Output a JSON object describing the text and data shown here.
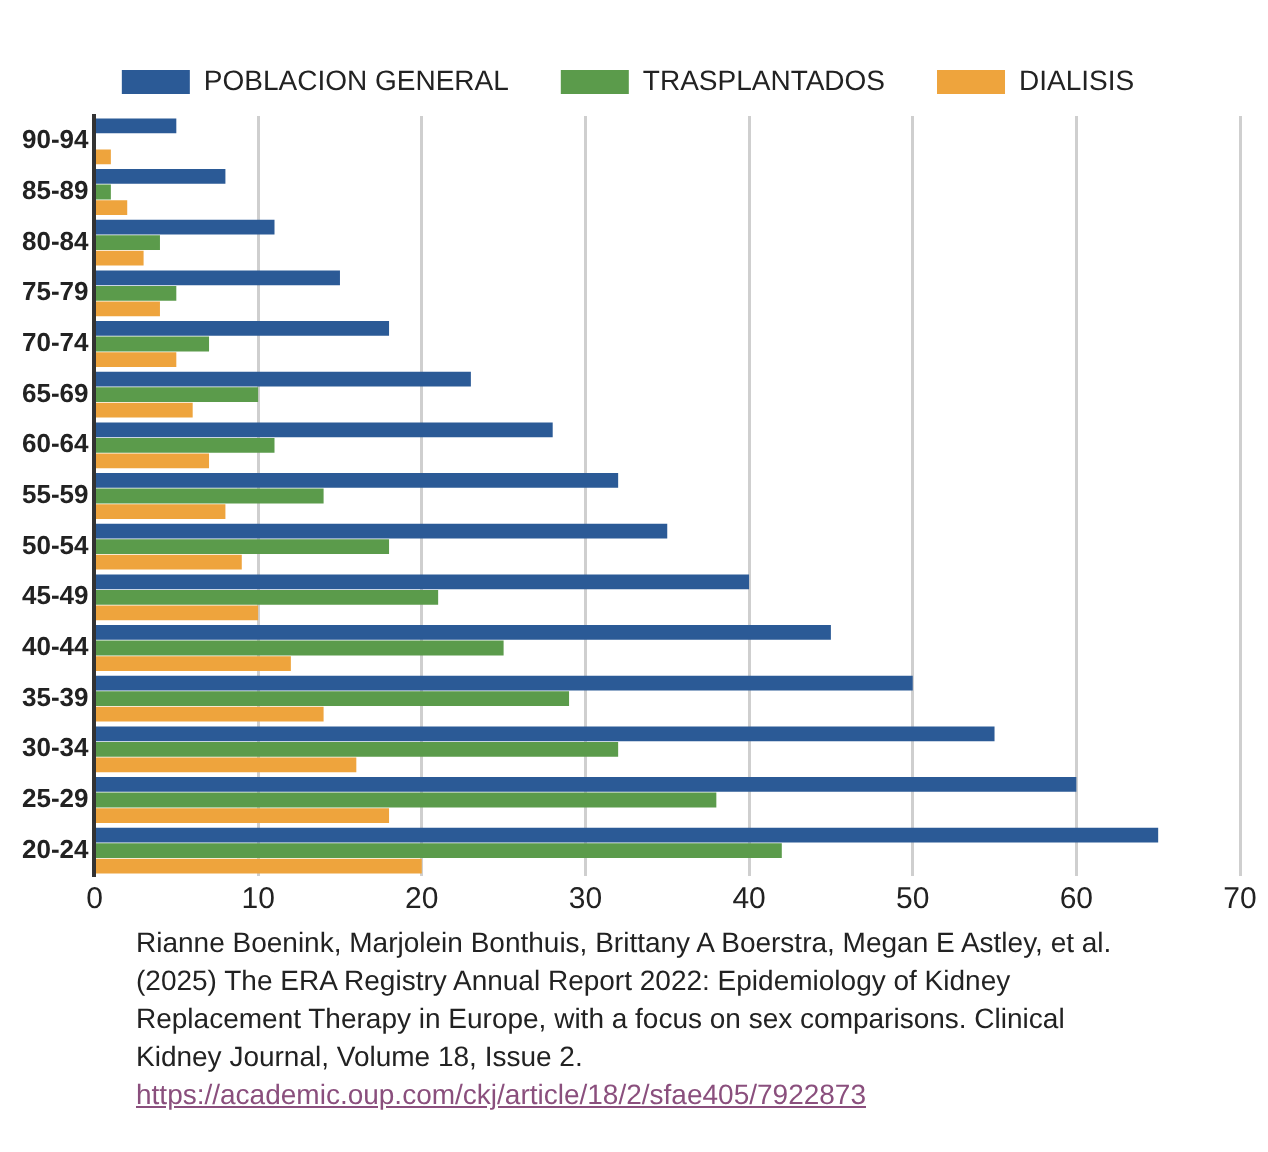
{
  "chart_data": {
    "type": "bar",
    "orientation": "horizontal",
    "categories": [
      "90-94",
      "85-89",
      "80-84",
      "75-79",
      "70-74",
      "65-69",
      "60-64",
      "55-59",
      "50-54",
      "45-49",
      "40-44",
      "35-39",
      "30-34",
      "25-29",
      "20-24"
    ],
    "series": [
      {
        "name": "POBLACION GENERAL",
        "color": "#2b5a96",
        "values": [
          5,
          8,
          11,
          15,
          18,
          23,
          28,
          32,
          35,
          40,
          45,
          50,
          55,
          60,
          65
        ]
      },
      {
        "name": "TRASPLANTADOS",
        "color": "#5b9b4b",
        "values": [
          0,
          1,
          4,
          5,
          7,
          10,
          11,
          14,
          18,
          21,
          25,
          29,
          32,
          38,
          42
        ]
      },
      {
        "name": "DIALISIS",
        "color": "#eea43d",
        "values": [
          1,
          2,
          3,
          4,
          5,
          6,
          7,
          8,
          9,
          10,
          12,
          14,
          16,
          18,
          20
        ]
      }
    ],
    "xlim": [
      0,
      70
    ],
    "xticks": [
      0,
      10,
      20,
      30,
      40,
      50,
      60,
      70
    ],
    "grid": "x",
    "legend": "top",
    "annotations": [
      "Rianne Boenink, Marjolein Bonthuis, Brittany A Boerstra, Megan E Astley, et al. (2025) The ERA Registry Annual Report 2022: Epidemiology of Kidney Replacement Therapy in Europe, with a focus on sex comparisons. Clinical Kidney Journal, Volume 18, Issue 2.",
      "https://academic.oup.com/ckj/article/18/2/sfae405/7922873"
    ]
  }
}
